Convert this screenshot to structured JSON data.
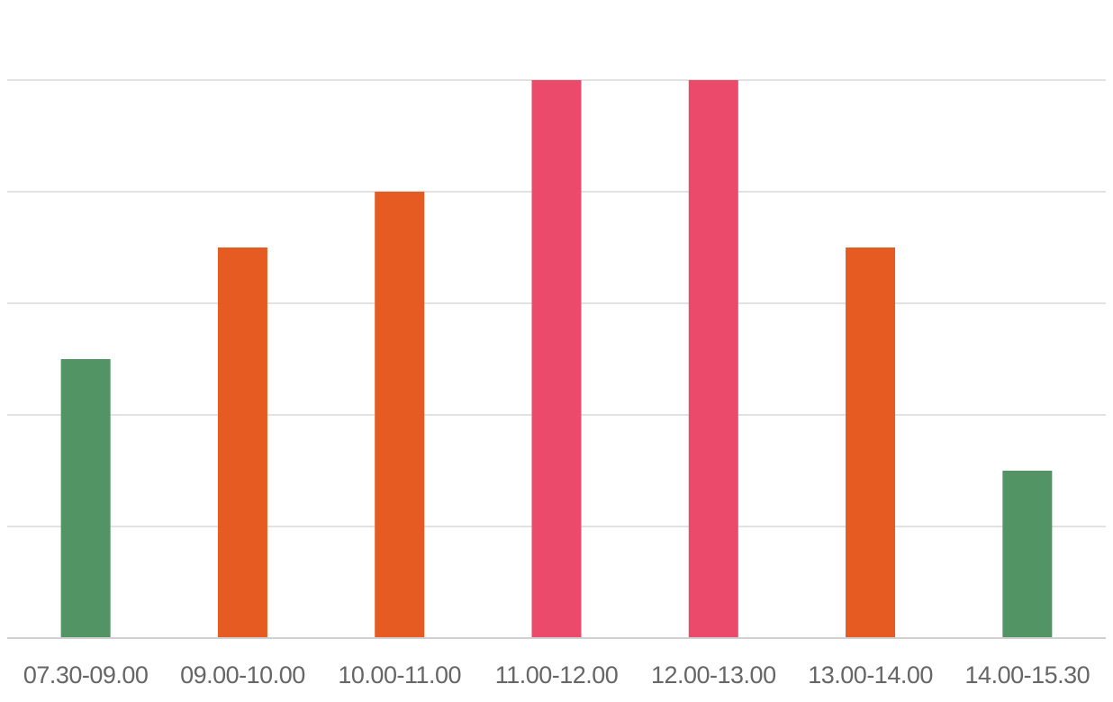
{
  "chart_data": {
    "type": "bar",
    "title": "",
    "xlabel": "",
    "ylabel": "",
    "categories": [
      "07.30-09.00",
      "09.00-10.00",
      "10.00-11.00",
      "11.00-12.00",
      "12.00-13.00",
      "13.00-14.00",
      "14.00-15.30"
    ],
    "values": [
      2.5,
      3.5,
      4,
      5,
      5,
      3.5,
      1.5
    ],
    "bar_colors": [
      "#539465",
      "#e55b22",
      "#e55b22",
      "#ec4a6a",
      "#ec4a6a",
      "#e55b22",
      "#539465"
    ],
    "ylim": [
      0,
      5
    ],
    "y_gridlines": [
      0,
      1,
      2,
      3,
      4,
      5
    ],
    "y_tick_labels_visible": false,
    "grid": true,
    "legend": "none"
  }
}
